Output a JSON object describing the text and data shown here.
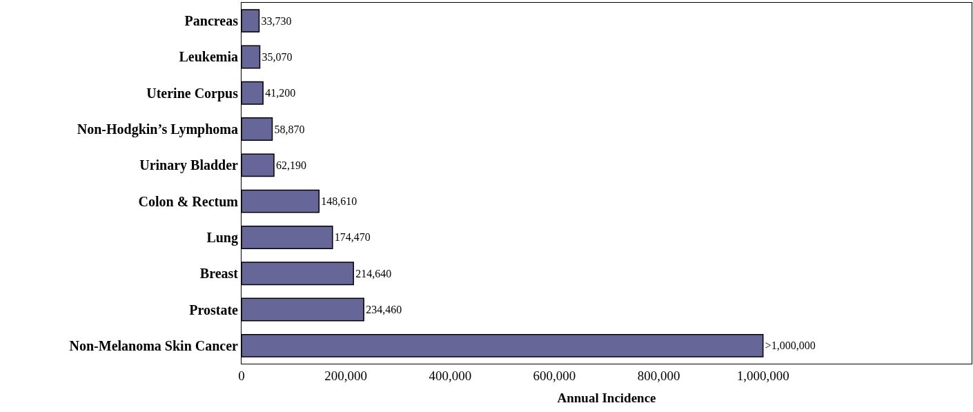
{
  "chart_data": {
    "type": "bar",
    "orientation": "horizontal",
    "xlabel": "Annual Incidence",
    "categories": [
      "Pancreas",
      "Leukemia",
      "Uterine Corpus",
      "Non-Hodgkin’s Lymphoma",
      "Urinary Bladder",
      "Colon & Rectum",
      "Lung",
      "Breast",
      "Prostate",
      "Non-Melanoma Skin Cancer"
    ],
    "values": [
      33730,
      35070,
      41200,
      58870,
      62190,
      148610,
      174470,
      214640,
      234460,
      1000000
    ],
    "value_labels": [
      "33,730",
      "35,070",
      "41,200",
      "58,870",
      "62,190",
      "148,610",
      "174,470",
      "214,640",
      "234,460",
      ">1,000,000"
    ],
    "color": "#666699",
    "xlim": [
      0,
      1400000
    ],
    "xticks": [
      {
        "value": 0,
        "label": "0"
      },
      {
        "value": 200000,
        "label": "200,000"
      },
      {
        "value": 400000,
        "label": "400,000"
      },
      {
        "value": 600000,
        "label": "600,000"
      },
      {
        "value": 800000,
        "label": "800,000"
      },
      {
        "value": 1000000,
        "label": "1,000,000"
      }
    ],
    "legend": false
  }
}
